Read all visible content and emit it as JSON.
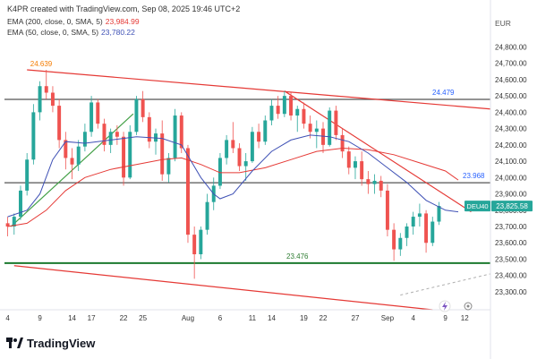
{
  "header": {
    "attribution": "K4PR created with TradingView.com, Sep 08, 2025 19:46 UTC+2",
    "indicators": [
      {
        "label": "EMA (200, close, 0, SMA, 5)",
        "value": "23,984.99",
        "color": "#e53935"
      },
      {
        "label": "EMA (50, close, 0, SMA, 5)",
        "value": "23,780.22",
        "color": "#3f51b5"
      }
    ]
  },
  "logo": {
    "text": "TradingView"
  },
  "chart_data": {
    "type": "candlestick",
    "symbol": "DEU40",
    "currency": "EUR",
    "last_price": 23825.58,
    "last_price_label": "23,825.58",
    "y_range": [
      23190,
      25000
    ],
    "y_ticks": [
      23300,
      23400,
      23500,
      23600,
      23700,
      23800,
      23900,
      24000,
      24100,
      24200,
      24300,
      24400,
      24500,
      24600,
      24700,
      24800
    ],
    "y_tick_labels": [
      "23,300.00",
      "23,400.00",
      "23,500.00",
      "23,600.00",
      "23,700.00",
      "23,800.00",
      "23,900.00",
      "24,000.00",
      "24,100.00",
      "24,200.00",
      "24,300.00",
      "24,400.00",
      "24,500.00",
      "24,600.00",
      "24,700.00",
      "24,800.00"
    ],
    "x_labels": [
      {
        "label": "4",
        "day": 0
      },
      {
        "label": "9",
        "day": 5
      },
      {
        "label": "14",
        "day": 10
      },
      {
        "label": "17",
        "day": 13
      },
      {
        "label": "22",
        "day": 18
      },
      {
        "label": "25",
        "day": 21
      },
      {
        "label": "Aug",
        "day": 28
      },
      {
        "label": "6",
        "day": 33
      },
      {
        "label": "11",
        "day": 38
      },
      {
        "label": "14",
        "day": 41
      },
      {
        "label": "19",
        "day": 46
      },
      {
        "label": "22",
        "day": 49
      },
      {
        "label": "27",
        "day": 54
      },
      {
        "label": "Sep",
        "day": 59
      },
      {
        "label": "4",
        "day": 63
      },
      {
        "label": "9",
        "day": 68
      },
      {
        "label": "12",
        "day": 71
      }
    ],
    "horizontal_levels": [
      {
        "value": 24479,
        "label": "24.479",
        "color": "#555555",
        "label_color": "#2962ff"
      },
      {
        "value": 23968,
        "label": "23.968",
        "color": "#555555",
        "label_color": "#2962ff"
      },
      {
        "value": 23476,
        "label": "23.476",
        "color": "#1b7a2e",
        "label_color": "#2e7d32"
      }
    ],
    "annotations": [
      {
        "label": "24.639",
        "day": 5.2,
        "value": 24639,
        "color": "#f57c00"
      }
    ],
    "trendlines": [
      {
        "from": {
          "day": 3,
          "value": 24660
        },
        "to": {
          "day": 75,
          "value": 24420
        },
        "color": "#e53935"
      },
      {
        "from": {
          "day": 1,
          "value": 23460
        },
        "to": {
          "day": 66,
          "value": 23190
        },
        "color": "#e53935"
      },
      {
        "from": {
          "day": 43,
          "value": 24530
        },
        "to": {
          "day": 72,
          "value": 23790
        },
        "color": "#e53935"
      },
      {
        "from": {
          "day": 0.5,
          "value": 23700
        },
        "to": {
          "day": 19.5,
          "value": 24390
        },
        "color": "#43a047"
      }
    ],
    "projection": {
      "from": {
        "day": 61,
        "value": 23280
      },
      "to": {
        "day": 75,
        "value": 23410
      },
      "color": "#b0b0b0"
    },
    "ohlc": [
      [
        23720,
        23760,
        23640,
        23700
      ],
      [
        23700,
        23780,
        23650,
        23760
      ],
      [
        23760,
        23950,
        23740,
        23920
      ],
      [
        23920,
        24150,
        23890,
        24110
      ],
      [
        24110,
        24450,
        24080,
        24400
      ],
      [
        24400,
        24590,
        24350,
        24560
      ],
      [
        24560,
        24660,
        24480,
        24520
      ],
      [
        24520,
        24560,
        24400,
        24440
      ],
      [
        24440,
        24480,
        24180,
        24230
      ],
      [
        24230,
        24280,
        24050,
        24120
      ],
      [
        24120,
        24180,
        23990,
        24080
      ],
      [
        24080,
        24230,
        24040,
        24190
      ],
      [
        24190,
        24330,
        24160,
        24280
      ],
      [
        24280,
        24500,
        24250,
        24460
      ],
      [
        24460,
        24480,
        24300,
        24330
      ],
      [
        24330,
        24360,
        24160,
        24200
      ],
      [
        24200,
        24300,
        24150,
        24280
      ],
      [
        24280,
        24320,
        24200,
        24250
      ],
      [
        24250,
        24280,
        23950,
        24000
      ],
      [
        24000,
        24320,
        23990,
        24280
      ],
      [
        24280,
        24500,
        24260,
        24480
      ],
      [
        24480,
        24530,
        24340,
        24370
      ],
      [
        24370,
        24400,
        24180,
        24220
      ],
      [
        24220,
        24300,
        24140,
        24270
      ],
      [
        24270,
        24350,
        23980,
        24020
      ],
      [
        24020,
        24150,
        23970,
        24120
      ],
      [
        24120,
        24420,
        24100,
        24380
      ],
      [
        24380,
        24400,
        24150,
        24180
      ],
      [
        24180,
        24200,
        23600,
        23650
      ],
      [
        23650,
        23700,
        23380,
        23530
      ],
      [
        23530,
        23700,
        23500,
        23680
      ],
      [
        23680,
        23900,
        23650,
        23850
      ],
      [
        23850,
        24000,
        23800,
        23950
      ],
      [
        23950,
        24150,
        23930,
        24120
      ],
      [
        24120,
        24260,
        24080,
        24230
      ],
      [
        24230,
        24340,
        24150,
        24180
      ],
      [
        24180,
        24210,
        24040,
        24070
      ],
      [
        24070,
        24150,
        23980,
        24100
      ],
      [
        24100,
        24310,
        24090,
        24280
      ],
      [
        24280,
        24330,
        24180,
        24220
      ],
      [
        24220,
        24380,
        24200,
        24350
      ],
      [
        24350,
        24480,
        24320,
        24440
      ],
      [
        24440,
        24500,
        24360,
        24390
      ],
      [
        24390,
        24530,
        24370,
        24500
      ],
      [
        24500,
        24520,
        24350,
        24380
      ],
      [
        24380,
        24440,
        24280,
        24420
      ],
      [
        24420,
        24460,
        24300,
        24330
      ],
      [
        24330,
        24380,
        24240,
        24280
      ],
      [
        24280,
        24350,
        24180,
        24300
      ],
      [
        24300,
        24340,
        24150,
        24200
      ],
      [
        24200,
        24430,
        24190,
        24410
      ],
      [
        24410,
        24440,
        24230,
        24260
      ],
      [
        24260,
        24300,
        24120,
        24160
      ],
      [
        24160,
        24190,
        24020,
        24060
      ],
      [
        24060,
        24130,
        23990,
        24100
      ],
      [
        24100,
        24160,
        23950,
        23990
      ],
      [
        23990,
        24040,
        23900,
        23960
      ],
      [
        23960,
        24020,
        23900,
        23980
      ],
      [
        23980,
        24010,
        23880,
        23920
      ],
      [
        23920,
        23960,
        23640,
        23680
      ],
      [
        23680,
        23720,
        23490,
        23560
      ],
      [
        23560,
        23660,
        23520,
        23630
      ],
      [
        23630,
        23720,
        23580,
        23700
      ],
      [
        23700,
        23790,
        23650,
        23760
      ],
      [
        23760,
        23840,
        23700,
        23780
      ],
      [
        23780,
        23800,
        23540,
        23600
      ],
      [
        23600,
        23760,
        23580,
        23730
      ],
      [
        23730,
        23850,
        23710,
        23826
      ]
    ],
    "ema50": [
      [
        0,
        23760
      ],
      [
        3,
        23800
      ],
      [
        5,
        23900
      ],
      [
        7,
        24110
      ],
      [
        9,
        24220
      ],
      [
        12,
        24210
      ],
      [
        16,
        24230
      ],
      [
        20,
        24250
      ],
      [
        24,
        24240
      ],
      [
        27,
        24200
      ],
      [
        30,
        24000
      ],
      [
        32,
        23900
      ],
      [
        33,
        23870
      ],
      [
        35,
        23900
      ],
      [
        38,
        24040
      ],
      [
        41,
        24160
      ],
      [
        44,
        24230
      ],
      [
        47,
        24260
      ],
      [
        50,
        24250
      ],
      [
        53,
        24220
      ],
      [
        56,
        24150
      ],
      [
        59,
        24060
      ],
      [
        62,
        23970
      ],
      [
        65,
        23860
      ],
      [
        68,
        23800
      ],
      [
        70,
        23790
      ]
    ],
    "ema200": [
      [
        0,
        23700
      ],
      [
        3,
        23720
      ],
      [
        6,
        23800
      ],
      [
        9,
        23920
      ],
      [
        12,
        24000
      ],
      [
        16,
        24050
      ],
      [
        20,
        24080
      ],
      [
        24,
        24110
      ],
      [
        27,
        24120
      ],
      [
        30,
        24080
      ],
      [
        33,
        24030
      ],
      [
        36,
        24030
      ],
      [
        40,
        24060
      ],
      [
        44,
        24110
      ],
      [
        48,
        24160
      ],
      [
        52,
        24180
      ],
      [
        56,
        24170
      ],
      [
        60,
        24140
      ],
      [
        64,
        24090
      ],
      [
        68,
        24040
      ],
      [
        70,
        23985
      ]
    ],
    "colors": {
      "up": "#26a69a",
      "down": "#ef5350"
    }
  }
}
